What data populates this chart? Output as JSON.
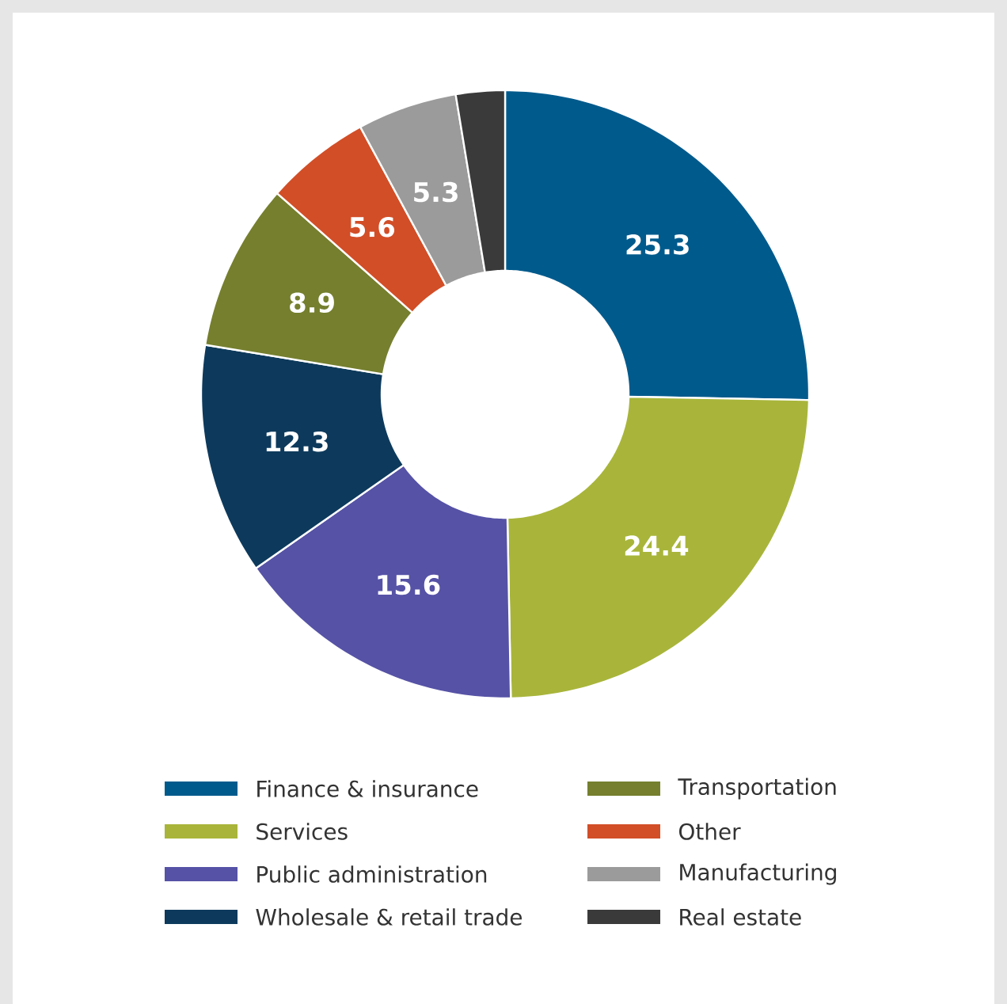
{
  "chart_data": {
    "type": "donut",
    "categories": [
      "Finance & insurance",
      "Services",
      "Public administration",
      "Wholesale & retail trade",
      "Transportation",
      "Other",
      "Manufacturing",
      "Real estate"
    ],
    "values": [
      25.3,
      24.4,
      15.6,
      12.3,
      8.9,
      5.6,
      5.3,
      2.6
    ],
    "value_labels": [
      "25.3",
      "24.4",
      "15.6",
      "12.3",
      "8.9",
      "5.6",
      "5.3",
      null
    ],
    "colors": [
      "#005a8c",
      "#a8b53a",
      "#5652a6",
      "#0d3a5c",
      "#757f2e",
      "#d24e27",
      "#9b9b9b",
      "#3a3a3a"
    ],
    "legend": "bottom"
  }
}
